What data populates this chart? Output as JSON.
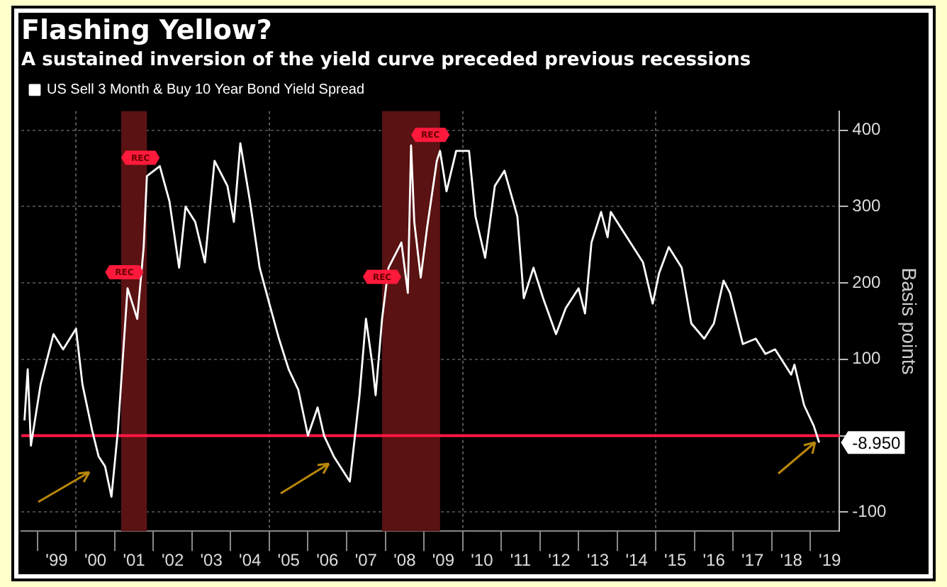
{
  "chart_data": {
    "type": "line",
    "title": "Flashing Yellow?",
    "subtitle": "A sustained inversion of the yield curve preceded previous recessions",
    "ylabel": "Basis points",
    "x": [
      "1998-09",
      "1998-10",
      "1998-11",
      "1999-02",
      "1999-06",
      "1999-09",
      "2000-01",
      "2000-03",
      "2000-06",
      "2000-08",
      "2000-10",
      "2000-12",
      "2001-02",
      "2001-05",
      "2001-08",
      "2001-10",
      "2001-11",
      "2002-03",
      "2002-06",
      "2002-09",
      "2002-11",
      "2003-02",
      "2003-05",
      "2003-08",
      "2003-12",
      "2004-02",
      "2004-04",
      "2004-07",
      "2004-10",
      "2005-01",
      "2005-04",
      "2005-07",
      "2005-10",
      "2006-01",
      "2006-04",
      "2006-06",
      "2006-09",
      "2007-02",
      "2007-05",
      "2007-07",
      "2007-09",
      "2007-10",
      "2007-12",
      "2008-02",
      "2008-06",
      "2008-08",
      "2008-09",
      "2008-10",
      "2008-12",
      "2009-02",
      "2009-05",
      "2009-06",
      "2009-08",
      "2009-11",
      "2010-03",
      "2010-05",
      "2010-08",
      "2010-11",
      "2011-02",
      "2011-06",
      "2011-08",
      "2011-11",
      "2012-02",
      "2012-06",
      "2012-09",
      "2013-01",
      "2013-03",
      "2013-05",
      "2013-08",
      "2013-10",
      "2013-11",
      "2014-04",
      "2014-09",
      "2014-12",
      "2015-02",
      "2015-05",
      "2015-09",
      "2015-12",
      "2016-04",
      "2016-07",
      "2016-10",
      "2016-12",
      "2017-04",
      "2017-08",
      "2017-11",
      "2018-02",
      "2018-07",
      "2018-08",
      "2018-11",
      "2019-02",
      "2019-03-22"
    ],
    "series": [
      {
        "name": "US Sell 3 Month & Buy 10 Year Bond Yield Spread",
        "color": "#ffffff",
        "values": [
          20,
          87,
          -13,
          67,
          133,
          113,
          140,
          67,
          7,
          -27,
          -40,
          -80,
          7,
          193,
          153,
          247,
          340,
          353,
          307,
          220,
          300,
          280,
          227,
          360,
          327,
          280,
          383,
          307,
          220,
          173,
          127,
          87,
          60,
          0,
          37,
          0,
          -27,
          -60,
          53,
          153,
          93,
          53,
          153,
          220,
          253,
          187,
          380,
          280,
          207,
          273,
          360,
          373,
          320,
          373,
          373,
          287,
          233,
          327,
          347,
          287,
          180,
          220,
          180,
          133,
          167,
          193,
          160,
          253,
          293,
          260,
          293,
          260,
          227,
          173,
          213,
          247,
          220,
          147,
          127,
          147,
          203,
          187,
          120,
          127,
          107,
          113,
          80,
          93,
          40,
          13,
          -8.95
        ]
      }
    ],
    "xlim": [
      "1998-08",
      "2019-10"
    ],
    "xticks": [
      {
        "value": "1999",
        "label": null
      },
      {
        "value": "1999-07",
        "label": "'99"
      },
      {
        "value": "2000",
        "label": null
      },
      {
        "value": "2000-07",
        "label": "'00"
      },
      {
        "value": "2001",
        "label": null
      },
      {
        "value": "2001-07",
        "label": "'01"
      },
      {
        "value": "2002",
        "label": null
      },
      {
        "value": "2002-07",
        "label": "'02"
      },
      {
        "value": "2003",
        "label": null
      },
      {
        "value": "2003-07",
        "label": "'03"
      },
      {
        "value": "2004",
        "label": null
      },
      {
        "value": "2004-07",
        "label": "'04"
      },
      {
        "value": "2005",
        "label": null
      },
      {
        "value": "2005-07",
        "label": "'05"
      },
      {
        "value": "2006",
        "label": null
      },
      {
        "value": "2006-07",
        "label": "'06"
      },
      {
        "value": "2007",
        "label": null
      },
      {
        "value": "2007-07",
        "label": "'07"
      },
      {
        "value": "2008",
        "label": null
      },
      {
        "value": "2008-07",
        "label": "'08"
      },
      {
        "value": "2009",
        "label": null
      },
      {
        "value": "2009-07",
        "label": "'09"
      },
      {
        "value": "2010",
        "label": null
      },
      {
        "value": "2010-07",
        "label": "'10"
      },
      {
        "value": "2011",
        "label": null
      },
      {
        "value": "2011-07",
        "label": "'11"
      },
      {
        "value": "2012",
        "label": null
      },
      {
        "value": "2012-07",
        "label": "'12"
      },
      {
        "value": "2013",
        "label": null
      },
      {
        "value": "2013-07",
        "label": "'13"
      },
      {
        "value": "2014",
        "label": null
      },
      {
        "value": "2014-07",
        "label": "'14"
      },
      {
        "value": "2015",
        "label": null
      },
      {
        "value": "2015-07",
        "label": "'15"
      },
      {
        "value": "2016",
        "label": null
      },
      {
        "value": "2016-07",
        "label": "'16"
      },
      {
        "value": "2017",
        "label": null
      },
      {
        "value": "2017-07",
        "label": "'17"
      },
      {
        "value": "2018",
        "label": null
      },
      {
        "value": "2018-07",
        "label": "'18"
      },
      {
        "value": "2019",
        "label": null
      },
      {
        "value": "2019-07",
        "label": "'19"
      }
    ],
    "ylim": [
      -125,
      425
    ],
    "yticks": [
      -100,
      {
        "value": 0,
        "label": null
      },
      100,
      200,
      300,
      400
    ],
    "ref_lines": [
      {
        "axis": "y",
        "value": 0,
        "color": "#ff1744"
      }
    ],
    "bands": [
      {
        "axis": "x",
        "from": "2001-03",
        "to": "2001-11",
        "color": "#5a1212"
      },
      {
        "axis": "x",
        "from": "2007-12",
        "to": "2009-06",
        "color": "#5a1212"
      }
    ],
    "annotations": [
      {
        "text": "-8.950",
        "x": "2019-03-22",
        "y": -8.95
      },
      {
        "text": "REC",
        "x": "2001-04",
        "y": 214
      },
      {
        "text": "REC",
        "x": "2001-09",
        "y": 364
      },
      {
        "text": "REC",
        "x": "2007-12",
        "y": 208
      },
      {
        "text": "REC",
        "x": "2009-03",
        "y": 394
      }
    ],
    "grid": true,
    "legend": "top left",
    "line_style": "solid"
  }
}
